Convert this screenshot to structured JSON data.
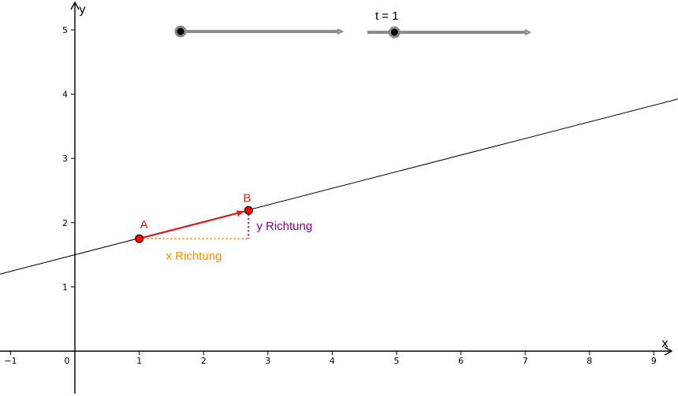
{
  "axes": {
    "x_label": "x",
    "y_label": "y",
    "x_ticks": [
      "−1",
      "0",
      "1",
      "2",
      "3",
      "4",
      "5",
      "6",
      "7",
      "8",
      "9"
    ],
    "y_ticks": [
      "1",
      "2",
      "3",
      "4",
      "5"
    ]
  },
  "line": {
    "slope": 0.2586,
    "intercept": 1.5
  },
  "points": {
    "A": {
      "label": "A",
      "x": 1.0,
      "y": 1.75
    },
    "B": {
      "label": "B",
      "x": 2.7,
      "y": 2.19
    }
  },
  "labels": {
    "x_direction": "x Richtung",
    "y_direction": "y Richtung"
  },
  "sliders": {
    "slider1": {
      "value": 0.0
    },
    "slider2": {
      "label": "t = 1",
      "value": 0.17
    }
  },
  "colors": {
    "point_red": "#ff0000",
    "vector_red": "#e0201c",
    "x_direction": "#ff8c00",
    "y_direction": "#8b008b",
    "slider_track": "#8c8c8c"
  }
}
